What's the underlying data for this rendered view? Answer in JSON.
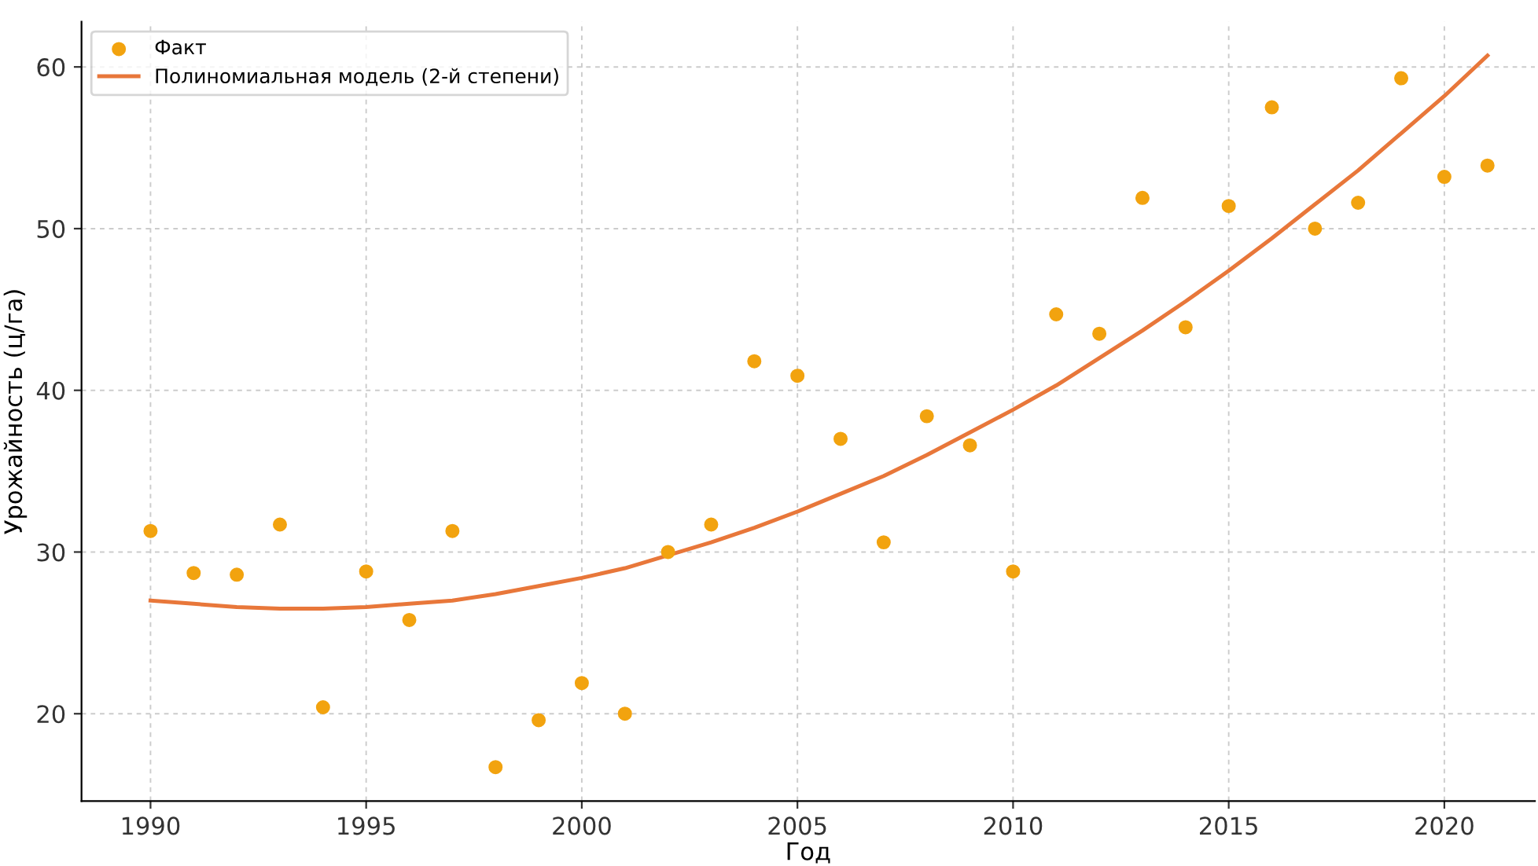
{
  "chart_data": {
    "type": "scatter",
    "xlabel": "Год",
    "ylabel": "Урожайность (ц/га)",
    "series": [
      {
        "name": "Факт",
        "color": "#f2a30f",
        "marker": "circle",
        "x": [
          1990,
          1991,
          1992,
          1993,
          1994,
          1995,
          1996,
          1997,
          1998,
          1999,
          2000,
          2001,
          2002,
          2003,
          2004,
          2005,
          2006,
          2007,
          2008,
          2009,
          2010,
          2011,
          2012,
          2013,
          2014,
          2015,
          2016,
          2017,
          2018,
          2019,
          2020,
          2021
        ],
        "values": [
          31.3,
          28.7,
          28.6,
          31.7,
          20.4,
          28.8,
          25.8,
          31.3,
          16.7,
          19.6,
          21.9,
          20.0,
          30.0,
          31.7,
          41.8,
          40.9,
          37.0,
          30.6,
          38.4,
          36.6,
          28.8,
          44.7,
          43.5,
          51.9,
          43.9,
          51.4,
          57.5,
          50.0,
          51.6,
          59.3,
          53.2,
          53.9
        ]
      },
      {
        "name": "Полиномиальная модель (2-й степени)",
        "type": "line",
        "color": "#e8773a",
        "line_style": "solid",
        "x": [
          1990,
          1991,
          1992,
          1993,
          1994,
          1995,
          1996,
          1997,
          1998,
          1999,
          2000,
          2001,
          2002,
          2003,
          2004,
          2005,
          2006,
          2007,
          2008,
          2009,
          2010,
          2011,
          2012,
          2013,
          2014,
          2015,
          2016,
          2017,
          2018,
          2019,
          2020,
          2021
        ],
        "values": [
          27.0,
          26.8,
          26.6,
          26.5,
          26.5,
          26.6,
          26.8,
          27.0,
          27.4,
          27.9,
          28.4,
          29.0,
          29.8,
          30.6,
          31.5,
          32.5,
          33.6,
          34.7,
          36.0,
          37.4,
          38.8,
          40.3,
          42.0,
          43.7,
          45.5,
          47.4,
          49.4,
          51.5,
          53.6,
          55.9,
          58.2,
          60.7
        ]
      }
    ],
    "xlim": [
      1988.4,
      2022.1
    ],
    "xticks": [
      1990,
      1995,
      2000,
      2005,
      2010,
      2015,
      2020
    ],
    "ylim": [
      14.6,
      62.8
    ],
    "yticks": [
      20,
      30,
      40,
      50,
      60
    ],
    "grid": true,
    "legend": "top left"
  }
}
